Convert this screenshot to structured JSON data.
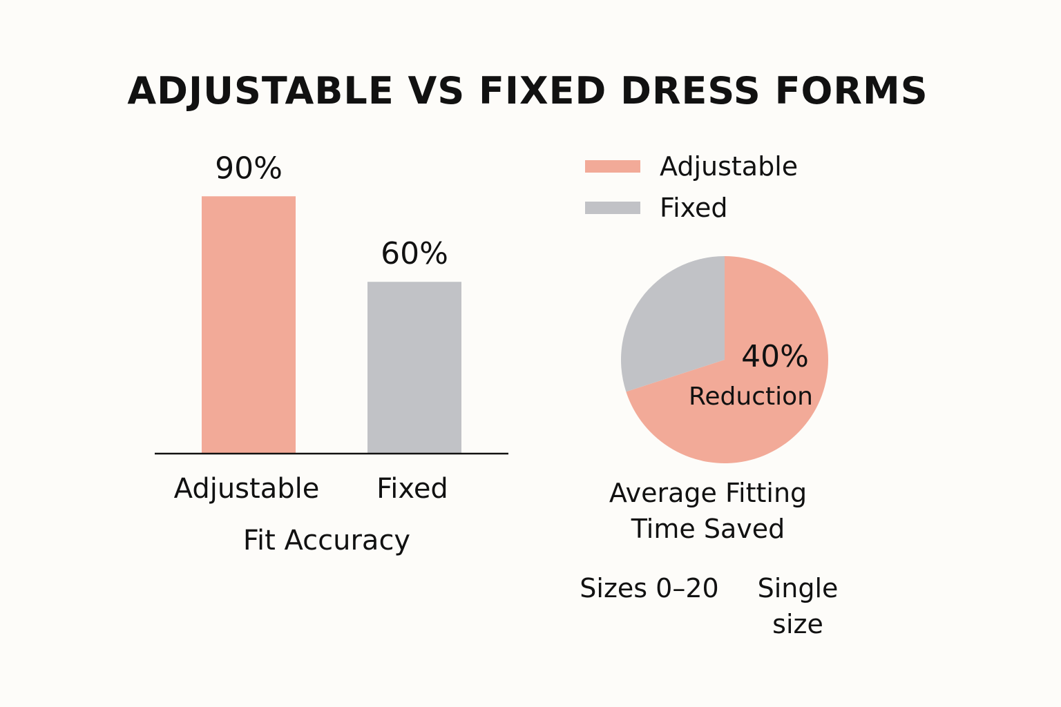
{
  "title": "ADJUSTABLE VS FIXED DRESS FORMS",
  "colors": {
    "adjustable": "#f2aa98",
    "fixed": "#c1c2c6",
    "axis": "#111111",
    "background": "#fdfcf9"
  },
  "legend": [
    {
      "label": "Adjustable",
      "color": "#f2aa98"
    },
    {
      "label": "Fixed",
      "color": "#c1c2c6"
    }
  ],
  "pie_title_line1": "Average Fitting",
  "pie_title_line2": "Time Saved",
  "pie_value_label": "40%",
  "pie_value_caption": "Reduction",
  "size_notes": {
    "adjustable": "Sizes 0–20",
    "fixed_line1": "Single",
    "fixed_line2": "size"
  },
  "chart_data": [
    {
      "type": "bar",
      "categories": [
        "Adjustable",
        "Fixed"
      ],
      "values": [
        90,
        60
      ],
      "value_labels": [
        "90%",
        "60%"
      ],
      "xlabel": "Fit Accuracy",
      "ylabel": "",
      "ylim": [
        0,
        100
      ],
      "colors": [
        "#f2aa98",
        "#c1c2c6"
      ],
      "grid": false
    },
    {
      "type": "pie",
      "labels": [
        "Adjustable",
        "Fixed"
      ],
      "values": [
        70,
        30
      ],
      "colors": [
        "#f2aa98",
        "#c1c2c6"
      ],
      "annotation": "40% Reduction",
      "title": "Average Fitting Time Saved"
    }
  ]
}
